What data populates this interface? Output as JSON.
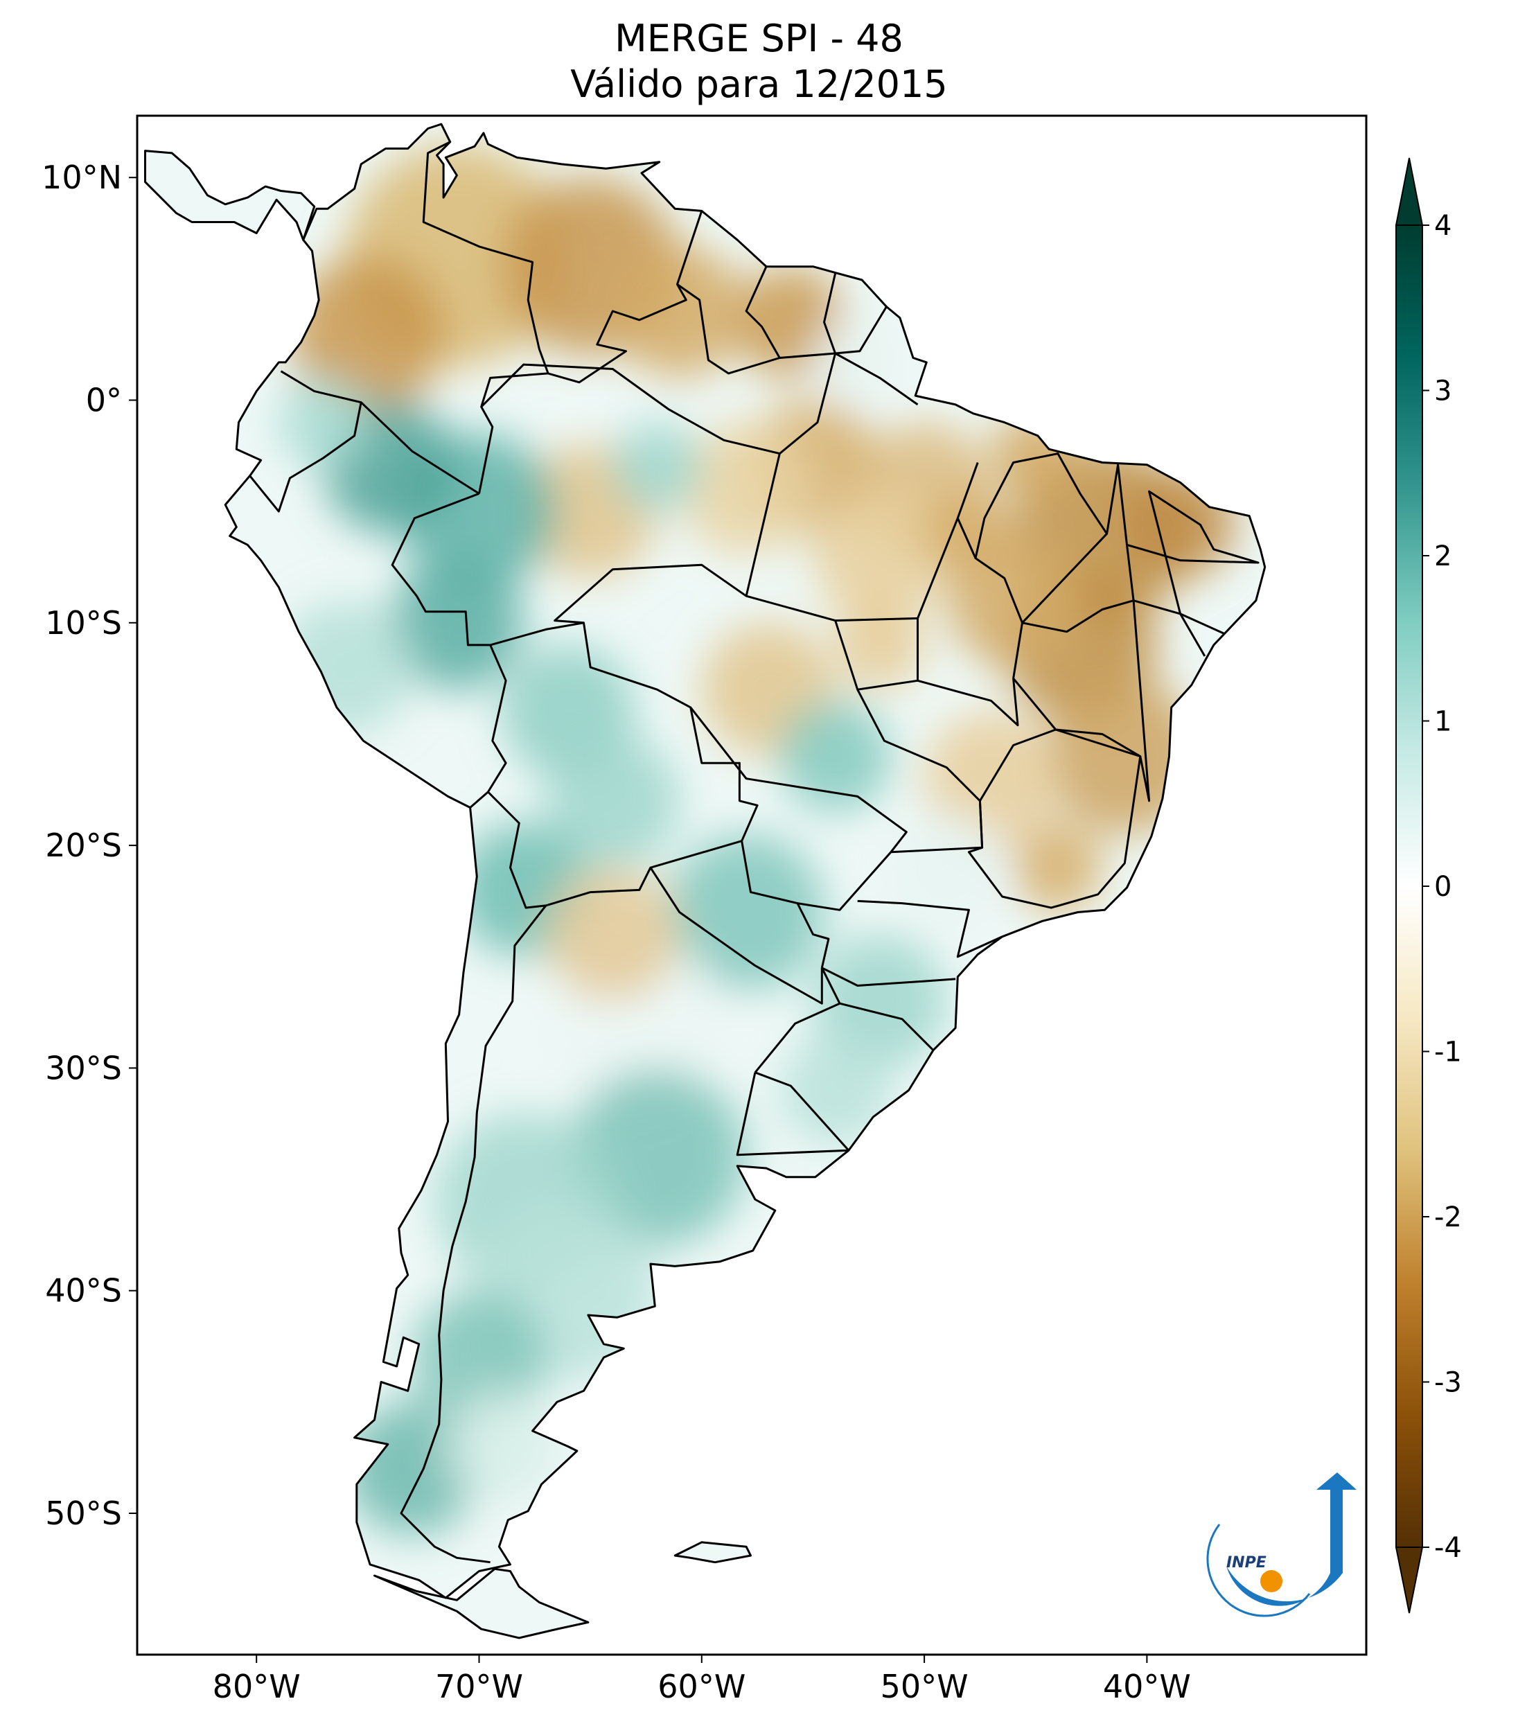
{
  "title": {
    "line1": "MERGE   SPI - 48",
    "line2": "Válido para 12/2015"
  },
  "axes": {
    "longitude_ticks": [
      {
        "value": -80,
        "label": "80°W"
      },
      {
        "value": -70,
        "label": "70°W"
      },
      {
        "value": -60,
        "label": "60°W"
      },
      {
        "value": -50,
        "label": "50°W"
      },
      {
        "value": -40,
        "label": "40°W"
      }
    ],
    "latitude_ticks": [
      {
        "value": 10,
        "label": "10°N"
      },
      {
        "value": 0,
        "label": "0°"
      },
      {
        "value": -10,
        "label": "10°S"
      },
      {
        "value": -20,
        "label": "20°S"
      },
      {
        "value": -30,
        "label": "30°S"
      },
      {
        "value": -40,
        "label": "40°S"
      },
      {
        "value": -50,
        "label": "50°S"
      }
    ],
    "lon_range": [
      -85,
      -30
    ],
    "lat_range": [
      -56,
      13
    ]
  },
  "colorbar": {
    "min": -4,
    "max": 4,
    "ticks": [
      4,
      3,
      2,
      1,
      0,
      -1,
      -2,
      -3,
      -4
    ],
    "tick_labels": [
      "4",
      "3",
      "2",
      "1",
      "0",
      "-1",
      "-2",
      "-3",
      "-4"
    ],
    "extend": "both",
    "colors": [
      "#543005",
      "#8c510a",
      "#bf812d",
      "#dfc27d",
      "#f6e8c3",
      "#ffffff",
      "#c7eae5",
      "#80cdc1",
      "#35978f",
      "#01665e",
      "#003c30"
    ]
  },
  "regions": {
    "dry": [
      "Venezuela",
      "Colombia north",
      "Guianas",
      "Northeast Brazil",
      "Central Brazil"
    ],
    "wet": [
      "Peru",
      "Amazonas west",
      "Bolivia",
      "Paraguay",
      "South Brazil",
      "Uruguay",
      "Argentina",
      "Chile south"
    ]
  },
  "logo": {
    "text": "INPE",
    "arc_color": "#1a77c0",
    "dot_color": "#f39200"
  }
}
